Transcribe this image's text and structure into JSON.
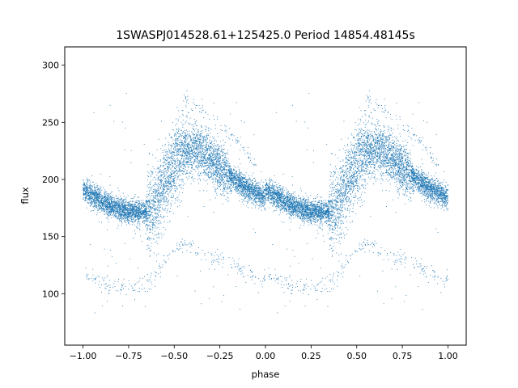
{
  "chart_data": {
    "type": "scatter",
    "title": "1SWASPJ014528.61+125425.0 Period 14854.48145s",
    "xlabel": "phase",
    "ylabel": "flux",
    "xlim": [
      -1.1,
      1.1
    ],
    "ylim": [
      55,
      316
    ],
    "xticks": [
      -1.0,
      -0.75,
      -0.5,
      -0.25,
      0.0,
      0.25,
      0.5,
      0.75,
      1.0
    ],
    "xtick_labels": [
      "−1.00",
      "−0.75",
      "−0.50",
      "−0.25",
      "0.00",
      "0.25",
      "0.50",
      "0.75",
      "1.00"
    ],
    "yticks": [
      100,
      150,
      200,
      250,
      300
    ],
    "ytick_labels": [
      "100",
      "150",
      "200",
      "250",
      "300"
    ],
    "grid": false,
    "marker_color": "#1f77b4",
    "series": [
      {
        "period_in_phase": 1.0,
        "main_band_profile": {
          "phase": [
            0.0,
            0.05,
            0.1,
            0.15,
            0.2,
            0.25,
            0.3,
            0.35,
            0.4,
            0.45,
            0.5,
            0.55,
            0.6,
            0.65,
            0.7,
            0.75,
            0.8,
            0.85,
            0.9,
            0.95,
            1.0
          ],
          "flux": [
            191,
            186,
            181,
            177,
            174,
            172,
            171,
            172,
            180,
            198,
            214,
            224,
            227,
            224,
            218,
            210,
            203,
            197,
            192,
            188,
            184
          ]
        },
        "lower_band_profile": {
          "phase": [
            0.0,
            0.05,
            0.1,
            0.15,
            0.2,
            0.25,
            0.3,
            0.35,
            0.4,
            0.45,
            0.5,
            0.55,
            0.6,
            0.65,
            0.7,
            0.75,
            0.8,
            0.85,
            0.9,
            0.95,
            1.0
          ],
          "flux": [
            118,
            114,
            110,
            107,
            106,
            105,
            106,
            110,
            118,
            130,
            140,
            143,
            140,
            136,
            132,
            130,
            127,
            123,
            119,
            115,
            112
          ]
        },
        "upper_band_profile": {
          "phase": [
            0.55,
            0.6,
            0.65,
            0.7,
            0.75,
            0.8,
            0.85,
            0.9,
            0.95
          ],
          "flux": [
            270,
            266,
            260,
            254,
            247,
            240,
            232,
            223,
            213
          ]
        }
      }
    ]
  }
}
